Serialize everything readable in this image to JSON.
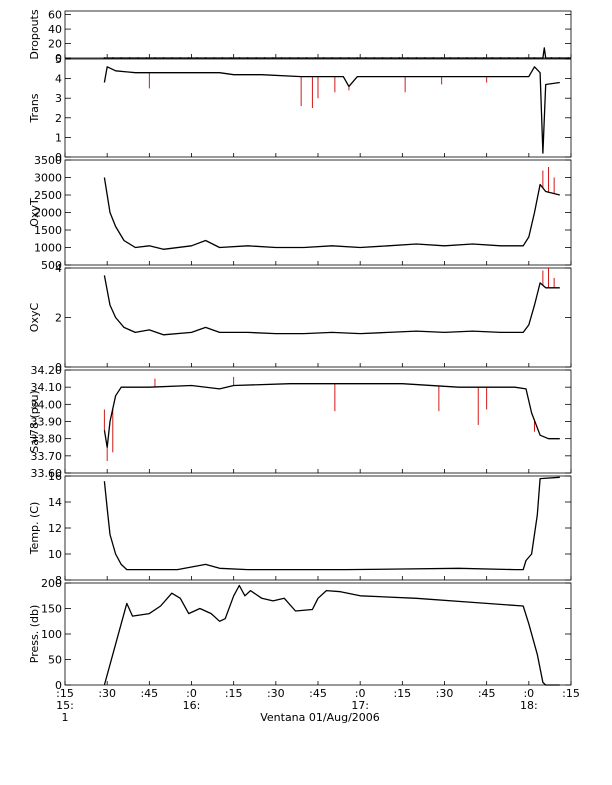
{
  "figure": {
    "xlabel": "Ventana 01/Aug/2006",
    "x_ticks": [
      {
        "t": 0,
        "label": ":15"
      },
      {
        "t": 15,
        "label": ":30"
      },
      {
        "t": 30,
        "label": ":45"
      },
      {
        "t": 45,
        "label": ":0"
      },
      {
        "t": 60,
        "label": ":15"
      },
      {
        "t": 75,
        "label": ":30"
      },
      {
        "t": 90,
        "label": ":45"
      },
      {
        "t": 105,
        "label": ":0"
      },
      {
        "t": 120,
        "label": ":15"
      },
      {
        "t": 135,
        "label": ":30"
      },
      {
        "t": 150,
        "label": ":45"
      },
      {
        "t": 165,
        "label": ":0"
      },
      {
        "t": 180,
        "label": ":15"
      }
    ],
    "hour_labels": [
      {
        "t": 0,
        "label": "15:"
      },
      {
        "t": 45,
        "label": "16:"
      },
      {
        "t": 105,
        "label": "17:"
      },
      {
        "t": 165,
        "label": "18:"
      }
    ],
    "day_label": {
      "t": 0,
      "label": "1"
    },
    "colors": {
      "primary": "#000000",
      "raw": "#cc0000"
    }
  },
  "chart_data": [
    {
      "type": "line",
      "ylabel": "Dropouts",
      "ylim": [
        0,
        65
      ],
      "yticks": [
        "0",
        "20",
        "40",
        "60"
      ],
      "yticks_values": [
        0,
        20,
        40,
        60
      ],
      "x_units": "minutes after 15:15",
      "series": [
        {
          "values": [
            [
              14,
              0
            ],
            [
              170,
              0
            ],
            [
              170.5,
              14
            ],
            [
              171,
              0
            ],
            [
              180,
              0
            ]
          ]
        }
      ]
    },
    {
      "type": "line",
      "ylabel": "Trans",
      "ylim": [
        0,
        5
      ],
      "yticks": [
        "0",
        "1",
        "2",
        "3",
        "4",
        "5"
      ],
      "yticks_values": [
        0,
        1,
        2,
        3,
        4,
        5
      ],
      "series": [
        {
          "values": [
            [
              14,
              3.8
            ],
            [
              15,
              4.6
            ],
            [
              18,
              4.4
            ],
            [
              25,
              4.3
            ],
            [
              40,
              4.3
            ],
            [
              55,
              4.3
            ],
            [
              60,
              4.2
            ],
            [
              70,
              4.2
            ],
            [
              84,
              4.1
            ],
            [
              90,
              4.1
            ],
            [
              99,
              4.1
            ],
            [
              101,
              3.6
            ],
            [
              104,
              4.1
            ],
            [
              110,
              4.1
            ],
            [
              120,
              4.1
            ],
            [
              130,
              4.1
            ],
            [
              140,
              4.1
            ],
            [
              150,
              4.1
            ],
            [
              160,
              4.1
            ],
            [
              165,
              4.1
            ],
            [
              167,
              4.6
            ],
            [
              169,
              4.3
            ],
            [
              170,
              0.2
            ],
            [
              171,
              3.7
            ],
            [
              176,
              3.8
            ]
          ]
        }
      ],
      "spikes": [
        [
          30,
          3.5
        ],
        [
          84,
          2.6
        ],
        [
          88,
          2.5
        ],
        [
          90,
          3.0
        ],
        [
          96,
          3.3
        ],
        [
          101,
          3.4
        ],
        [
          121,
          3.3
        ],
        [
          134,
          3.7
        ],
        [
          150,
          3.8
        ]
      ]
    },
    {
      "type": "line",
      "ylabel": "OxyT",
      "ylim": [
        500,
        3500
      ],
      "yticks": [
        "500",
        "1000",
        "1500",
        "2000",
        "2500",
        "3000",
        "3500"
      ],
      "yticks_values": [
        500,
        1000,
        1500,
        2000,
        2500,
        3000,
        3500
      ],
      "series": [
        {
          "values": [
            [
              14,
              3000
            ],
            [
              16,
              2000
            ],
            [
              18,
              1600
            ],
            [
              21,
              1200
            ],
            [
              25,
              1000
            ],
            [
              30,
              1050
            ],
            [
              35,
              950
            ],
            [
              45,
              1050
            ],
            [
              50,
              1200
            ],
            [
              55,
              1000
            ],
            [
              65,
              1050
            ],
            [
              75,
              1000
            ],
            [
              85,
              1000
            ],
            [
              95,
              1050
            ],
            [
              105,
              1000
            ],
            [
              115,
              1050
            ],
            [
              125,
              1100
            ],
            [
              135,
              1050
            ],
            [
              145,
              1100
            ],
            [
              155,
              1050
            ],
            [
              163,
              1050
            ],
            [
              165,
              1300
            ],
            [
              167,
              2000
            ],
            [
              169,
              2800
            ],
            [
              171,
              2600
            ],
            [
              176,
              2500
            ]
          ]
        }
      ],
      "spikes": [
        [
          170,
          3200
        ],
        [
          172,
          3300
        ],
        [
          174,
          3000
        ]
      ]
    },
    {
      "type": "line",
      "ylabel": "OxyC",
      "ylim": [
        0,
        4
      ],
      "yticks": [
        "0",
        "2",
        "4"
      ],
      "yticks_values": [
        0,
        2,
        4
      ],
      "series": [
        {
          "values": [
            [
              14,
              3.7
            ],
            [
              16,
              2.5
            ],
            [
              18,
              2.0
            ],
            [
              21,
              1.6
            ],
            [
              25,
              1.4
            ],
            [
              30,
              1.5
            ],
            [
              35,
              1.3
            ],
            [
              45,
              1.4
            ],
            [
              50,
              1.6
            ],
            [
              55,
              1.4
            ],
            [
              65,
              1.4
            ],
            [
              75,
              1.35
            ],
            [
              85,
              1.35
            ],
            [
              95,
              1.4
            ],
            [
              105,
              1.35
            ],
            [
              115,
              1.4
            ],
            [
              125,
              1.45
            ],
            [
              135,
              1.4
            ],
            [
              145,
              1.45
            ],
            [
              155,
              1.4
            ],
            [
              163,
              1.4
            ],
            [
              165,
              1.7
            ],
            [
              167,
              2.5
            ],
            [
              169,
              3.4
            ],
            [
              171,
              3.2
            ],
            [
              176,
              3.2
            ]
          ]
        }
      ],
      "spikes": [
        [
          170,
          3.9
        ],
        [
          172,
          4.0
        ],
        [
          174,
          3.6
        ]
      ]
    },
    {
      "type": "line",
      "ylabel": "Sal78 (psu)",
      "ylim": [
        33.6,
        34.2
      ],
      "yticks": [
        "33.60",
        "33.70",
        "33.80",
        "33.90",
        "34.00",
        "34.10",
        "34.20"
      ],
      "yticks_values": [
        33.6,
        33.7,
        33.8,
        33.9,
        34.0,
        34.1,
        34.2
      ],
      "series": [
        {
          "values": [
            [
              14,
              33.85
            ],
            [
              15,
              33.75
            ],
            [
              16,
              33.9
            ],
            [
              18,
              34.05
            ],
            [
              20,
              34.1
            ],
            [
              30,
              34.1
            ],
            [
              45,
              34.11
            ],
            [
              55,
              34.09
            ],
            [
              60,
              34.11
            ],
            [
              80,
              34.12
            ],
            [
              100,
              34.12
            ],
            [
              120,
              34.12
            ],
            [
              140,
              34.1
            ],
            [
              160,
              34.1
            ],
            [
              164,
              34.09
            ],
            [
              166,
              33.95
            ],
            [
              169,
              33.82
            ],
            [
              172,
              33.8
            ],
            [
              176,
              33.8
            ]
          ]
        }
      ],
      "spikes": [
        [
          14,
          33.97
        ],
        [
          15,
          33.67
        ],
        [
          17,
          33.72
        ],
        [
          32,
          34.15
        ],
        [
          60,
          34.16
        ],
        [
          96,
          33.96
        ],
        [
          133,
          33.96
        ],
        [
          147,
          33.88
        ],
        [
          150,
          33.97
        ],
        [
          167,
          33.84
        ]
      ]
    },
    {
      "type": "line",
      "ylabel": "Temp. (C)",
      "ylim": [
        8,
        16
      ],
      "yticks": [
        "8",
        "10",
        "12",
        "14",
        "16"
      ],
      "yticks_values": [
        8,
        10,
        12,
        14,
        16
      ],
      "series": [
        {
          "values": [
            [
              14,
              15.6
            ],
            [
              15,
              13.5
            ],
            [
              16,
              11.5
            ],
            [
              18,
              10.0
            ],
            [
              20,
              9.2
            ],
            [
              22,
              8.8
            ],
            [
              30,
              8.8
            ],
            [
              40,
              8.8
            ],
            [
              50,
              9.2
            ],
            [
              55,
              8.9
            ],
            [
              65,
              8.8
            ],
            [
              80,
              8.8
            ],
            [
              100,
              8.8
            ],
            [
              120,
              8.85
            ],
            [
              140,
              8.9
            ],
            [
              160,
              8.8
            ],
            [
              163,
              8.8
            ],
            [
              164,
              9.5
            ],
            [
              166,
              10.0
            ],
            [
              168,
              13.0
            ],
            [
              169,
              15.8
            ],
            [
              176,
              15.9
            ]
          ]
        }
      ]
    },
    {
      "type": "line",
      "ylabel": "Press. (db)",
      "ylim": [
        0,
        200
      ],
      "yticks": [
        "0",
        "50",
        "100",
        "150",
        "200"
      ],
      "yticks_values": [
        0,
        50,
        100,
        150,
        200
      ],
      "series": [
        {
          "values": [
            [
              14,
              0
            ],
            [
              18,
              80
            ],
            [
              22,
              160
            ],
            [
              24,
              135
            ],
            [
              30,
              140
            ],
            [
              34,
              155
            ],
            [
              38,
              180
            ],
            [
              41,
              170
            ],
            [
              44,
              140
            ],
            [
              48,
              150
            ],
            [
              52,
              140
            ],
            [
              55,
              125
            ],
            [
              57,
              130
            ],
            [
              60,
              175
            ],
            [
              62,
              195
            ],
            [
              64,
              175
            ],
            [
              66,
              185
            ],
            [
              70,
              170
            ],
            [
              74,
              165
            ],
            [
              78,
              170
            ],
            [
              82,
              145
            ],
            [
              88,
              148
            ],
            [
              90,
              170
            ],
            [
              93,
              185
            ],
            [
              98,
              183
            ],
            [
              105,
              175
            ],
            [
              125,
              170
            ],
            [
              145,
              162
            ],
            [
              163,
              155
            ],
            [
              165,
              120
            ],
            [
              168,
              60
            ],
            [
              170,
              5
            ],
            [
              171,
              0
            ],
            [
              176,
              0
            ]
          ]
        }
      ]
    }
  ]
}
